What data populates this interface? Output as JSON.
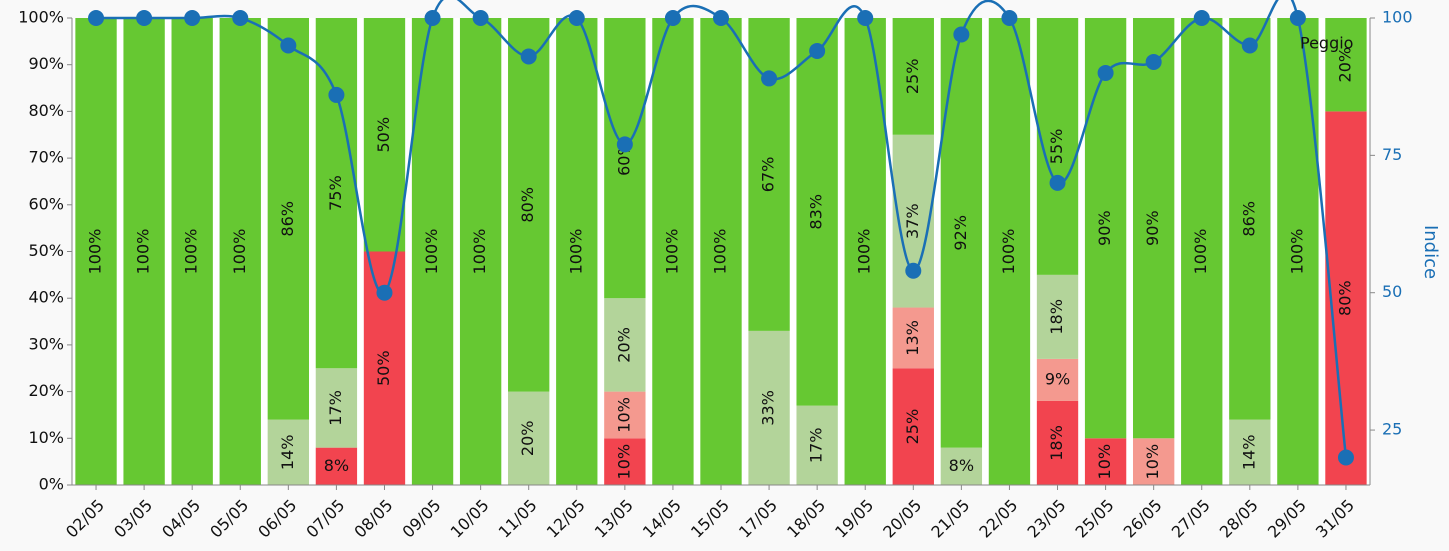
{
  "chart_data": {
    "type": "stacked_bar_line",
    "categories": [
      "02/05",
      "03/05",
      "04/05",
      "05/05",
      "06/05",
      "07/05",
      "08/05",
      "09/05",
      "10/05",
      "11/05",
      "12/05",
      "13/05",
      "14/05",
      "15/05",
      "17/05",
      "18/05",
      "19/05",
      "20/05",
      "21/05",
      "22/05",
      "23/05",
      "25/05",
      "26/05",
      "27/05",
      "28/05",
      "29/05",
      "31/05"
    ],
    "series": [
      {
        "name": "Peggio",
        "color": "#f2444f",
        "values": [
          0,
          0,
          0,
          0,
          0,
          8,
          50,
          0,
          0,
          0,
          0,
          10,
          0,
          0,
          0,
          0,
          0,
          25,
          0,
          0,
          18,
          10,
          0,
          0,
          0,
          0,
          80
        ],
        "value_labels": [
          null,
          null,
          null,
          null,
          null,
          "8%",
          "50%",
          null,
          null,
          null,
          null,
          "10%",
          null,
          null,
          null,
          null,
          null,
          "25%",
          null,
          null,
          "18%",
          "10%",
          null,
          null,
          null,
          null,
          "80%"
        ]
      },
      {
        "color": "#f4998f",
        "values": [
          0,
          0,
          0,
          0,
          0,
          0,
          0,
          0,
          0,
          0,
          0,
          10,
          0,
          0,
          0,
          0,
          0,
          13,
          0,
          0,
          9,
          0,
          10,
          0,
          0,
          0,
          0
        ],
        "value_labels": [
          null,
          null,
          null,
          null,
          null,
          null,
          null,
          null,
          null,
          null,
          null,
          "10%",
          null,
          null,
          null,
          null,
          null,
          "13%",
          null,
          null,
          "9%",
          null,
          "10%",
          null,
          null,
          null,
          null
        ]
      },
      {
        "color": "#b3d49a",
        "values": [
          0,
          0,
          0,
          0,
          14,
          17,
          0,
          0,
          0,
          20,
          0,
          20,
          0,
          0,
          33,
          17,
          0,
          37,
          8,
          0,
          18,
          0,
          0,
          0,
          14,
          0,
          0
        ],
        "value_labels": [
          null,
          null,
          null,
          null,
          "14%",
          "17%",
          null,
          null,
          null,
          "20%",
          null,
          "20%",
          null,
          null,
          "33%",
          "17%",
          null,
          "37%",
          "8%",
          null,
          "18%",
          null,
          null,
          null,
          "14%",
          null,
          null
        ]
      },
      {
        "color": "#66c832",
        "values": [
          100,
          100,
          100,
          100,
          86,
          75,
          50,
          100,
          100,
          80,
          100,
          60,
          100,
          100,
          67,
          83,
          100,
          25,
          92,
          100,
          55,
          90,
          90,
          100,
          86,
          100,
          20
        ],
        "value_labels": [
          "100%",
          "100%",
          "100%",
          "100%",
          "86%",
          "75%",
          "50%",
          "100%",
          "100%",
          "80%",
          "100%",
          "60%",
          "100%",
          "100%",
          "67%",
          "83%",
          "100%",
          "25%",
          "92%",
          "100%",
          "55%",
          "90%",
          "90%",
          "100%",
          "86%",
          "100%",
          "20%"
        ]
      },
      {
        "type": "line",
        "axis": "y2",
        "color": "#1a6fb5",
        "values": [
          100,
          100,
          100,
          100,
          95,
          86,
          50,
          100,
          100,
          93,
          100,
          77,
          100,
          100,
          89,
          94,
          100,
          54,
          97,
          100,
          70,
          90,
          92,
          100,
          95,
          100,
          20
        ]
      }
    ],
    "ylim": [
      0,
      100
    ],
    "yticks": [
      {
        "value": 0,
        "label": "0%"
      },
      {
        "value": 10,
        "label": "10%"
      },
      {
        "value": 20,
        "label": "20%"
      },
      {
        "value": 30,
        "label": "30%"
      },
      {
        "value": 40,
        "label": "40%"
      },
      {
        "value": 50,
        "label": "50%"
      },
      {
        "value": 60,
        "label": "60%"
      },
      {
        "value": 70,
        "label": "70%"
      },
      {
        "value": 80,
        "label": "80%"
      },
      {
        "value": 90,
        "label": "90%"
      },
      {
        "value": 100,
        "label": "100%"
      }
    ],
    "y2lim": [
      15,
      100
    ],
    "y2ticks": [
      25,
      50,
      75,
      100
    ],
    "y2label": "Indice",
    "stacked": true
  }
}
